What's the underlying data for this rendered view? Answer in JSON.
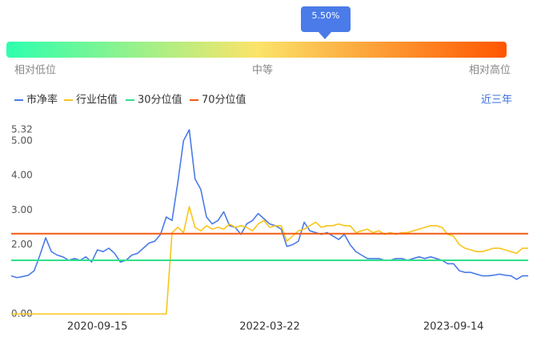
{
  "chart_data": {
    "type": "line",
    "gauge": {
      "tooltip": "5.50%",
      "labels": [
        "相对低位",
        "中等",
        "相对高位"
      ]
    },
    "range_button": "近三年",
    "categories": [
      null,
      null,
      null,
      null,
      null,
      null,
      null,
      null,
      null,
      null,
      null,
      null,
      null,
      null,
      null,
      "2020-09-15",
      null,
      null,
      null,
      null,
      null,
      null,
      null,
      null,
      null,
      null,
      null,
      null,
      null,
      null,
      null,
      null,
      null,
      null,
      null,
      null,
      null,
      null,
      null,
      null,
      null,
      null,
      null,
      null,
      null,
      "2022-03-22",
      null,
      null,
      null,
      null,
      null,
      null,
      null,
      null,
      null,
      null,
      null,
      null,
      null,
      null,
      null,
      null,
      null,
      null,
      null,
      null,
      null,
      null,
      null,
      null,
      null,
      null,
      null,
      null,
      null,
      null,
      null,
      "2023-09-14",
      null,
      null,
      null,
      null,
      null,
      null,
      null,
      null,
      null,
      null,
      null,
      null,
      null
    ],
    "series": [
      {
        "name": "市净率",
        "color": "#4a7be8",
        "values": [
          1.1,
          1.05,
          1.08,
          1.12,
          1.25,
          1.7,
          2.2,
          1.8,
          1.7,
          1.65,
          1.55,
          1.6,
          1.55,
          1.65,
          1.5,
          1.85,
          1.8,
          1.9,
          1.75,
          1.5,
          1.55,
          1.7,
          1.75,
          1.9,
          2.05,
          2.1,
          2.3,
          2.8,
          2.7,
          3.8,
          5.0,
          5.32,
          3.9,
          3.6,
          2.8,
          2.6,
          2.7,
          2.95,
          2.55,
          2.5,
          2.3,
          2.6,
          2.7,
          2.9,
          2.75,
          2.6,
          2.55,
          2.45,
          1.95,
          2.0,
          2.1,
          2.65,
          2.4,
          2.35,
          2.3,
          2.35,
          2.25,
          2.15,
          2.3,
          2.0,
          1.8,
          1.7,
          1.6,
          1.6,
          1.6,
          1.55,
          1.55,
          1.6,
          1.6,
          1.55,
          1.6,
          1.65,
          1.6,
          1.65,
          1.6,
          1.55,
          1.45,
          1.45,
          1.25,
          1.2,
          1.2,
          1.15,
          1.1,
          1.1,
          1.12,
          1.15,
          1.12,
          1.1,
          1.0,
          1.1,
          1.1
        ]
      },
      {
        "name": "行业估值",
        "color": "#f8c51c",
        "values": [
          0,
          0,
          0,
          0,
          0,
          0,
          0,
          0,
          0,
          0,
          0,
          0,
          0,
          0,
          0,
          0,
          0,
          0,
          0,
          0,
          0,
          0,
          0,
          0,
          0,
          0,
          0,
          0,
          2.35,
          2.5,
          2.35,
          3.1,
          2.5,
          2.4,
          2.55,
          2.45,
          2.5,
          2.45,
          2.6,
          2.5,
          2.55,
          2.5,
          2.4,
          2.6,
          2.7,
          2.5,
          2.55,
          2.55,
          2.1,
          2.25,
          2.4,
          2.45,
          2.55,
          2.65,
          2.5,
          2.55,
          2.55,
          2.6,
          2.55,
          2.55,
          2.35,
          2.4,
          2.45,
          2.35,
          2.4,
          2.3,
          2.35,
          2.3,
          2.35,
          2.35,
          2.4,
          2.45,
          2.5,
          2.55,
          2.55,
          2.5,
          2.3,
          2.25,
          2.0,
          1.9,
          1.85,
          1.8,
          1.8,
          1.85,
          1.9,
          1.9,
          1.85,
          1.8,
          1.75,
          1.9,
          1.9
        ]
      },
      {
        "name": "30分位值",
        "color": "#2fe08a",
        "value": 1.55
      },
      {
        "name": "70分位值",
        "color": "#f25a14",
        "value": 2.32
      }
    ],
    "ylim": [
      0,
      5.32
    ],
    "yticks": [
      {
        "value": 0,
        "label": "0.00"
      },
      {
        "value": 2,
        "label": "2.00"
      },
      {
        "value": 3,
        "label": "3.00"
      },
      {
        "value": 4,
        "label": "4.00"
      },
      {
        "value": 5,
        "label": "5.00"
      },
      5.32
    ]
  }
}
